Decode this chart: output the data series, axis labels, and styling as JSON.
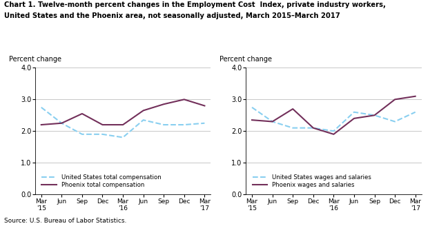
{
  "title_line1": "Chart 1. Twelve-month percent changes in the Employment Cost  Index, private industry workers,",
  "title_line2": "United States and the Phoenix area, not seasonally adjusted, March 2015–March 2017",
  "source": "Source: U.S. Bureau of Labor Statistics.",
  "ylabel": "Percent change",
  "x_labels": [
    "Mar\n'15",
    "Jun",
    "Sep",
    "Dec",
    "Mar\n'16",
    "Jun",
    "Sep",
    "Dec",
    "Mar\n'17"
  ],
  "ylim": [
    0.0,
    4.0
  ],
  "yticks": [
    0.0,
    1.0,
    2.0,
    3.0,
    4.0
  ],
  "left_us": [
    2.75,
    2.25,
    1.9,
    1.9,
    1.8,
    2.35,
    2.2,
    2.2,
    2.25
  ],
  "left_phoenix": [
    2.2,
    2.25,
    2.55,
    2.2,
    2.2,
    2.65,
    2.85,
    3.0,
    2.8
  ],
  "right_us": [
    2.75,
    2.3,
    2.1,
    2.1,
    2.0,
    2.6,
    2.5,
    2.3,
    2.6
  ],
  "right_phoenix": [
    2.35,
    2.3,
    2.7,
    2.1,
    1.9,
    2.4,
    2.5,
    3.0,
    3.1
  ],
  "us_color": "#89CFF0",
  "phoenix_color": "#722F5A",
  "us_linestyle": "--",
  "phoenix_linestyle": "-",
  "linewidth": 1.5,
  "left_legend1": "United States total compensation",
  "left_legend2": "Phoenix total compensation",
  "right_legend1": "United States wages and salaries",
  "right_legend2": "Phoenix wages and salaries"
}
